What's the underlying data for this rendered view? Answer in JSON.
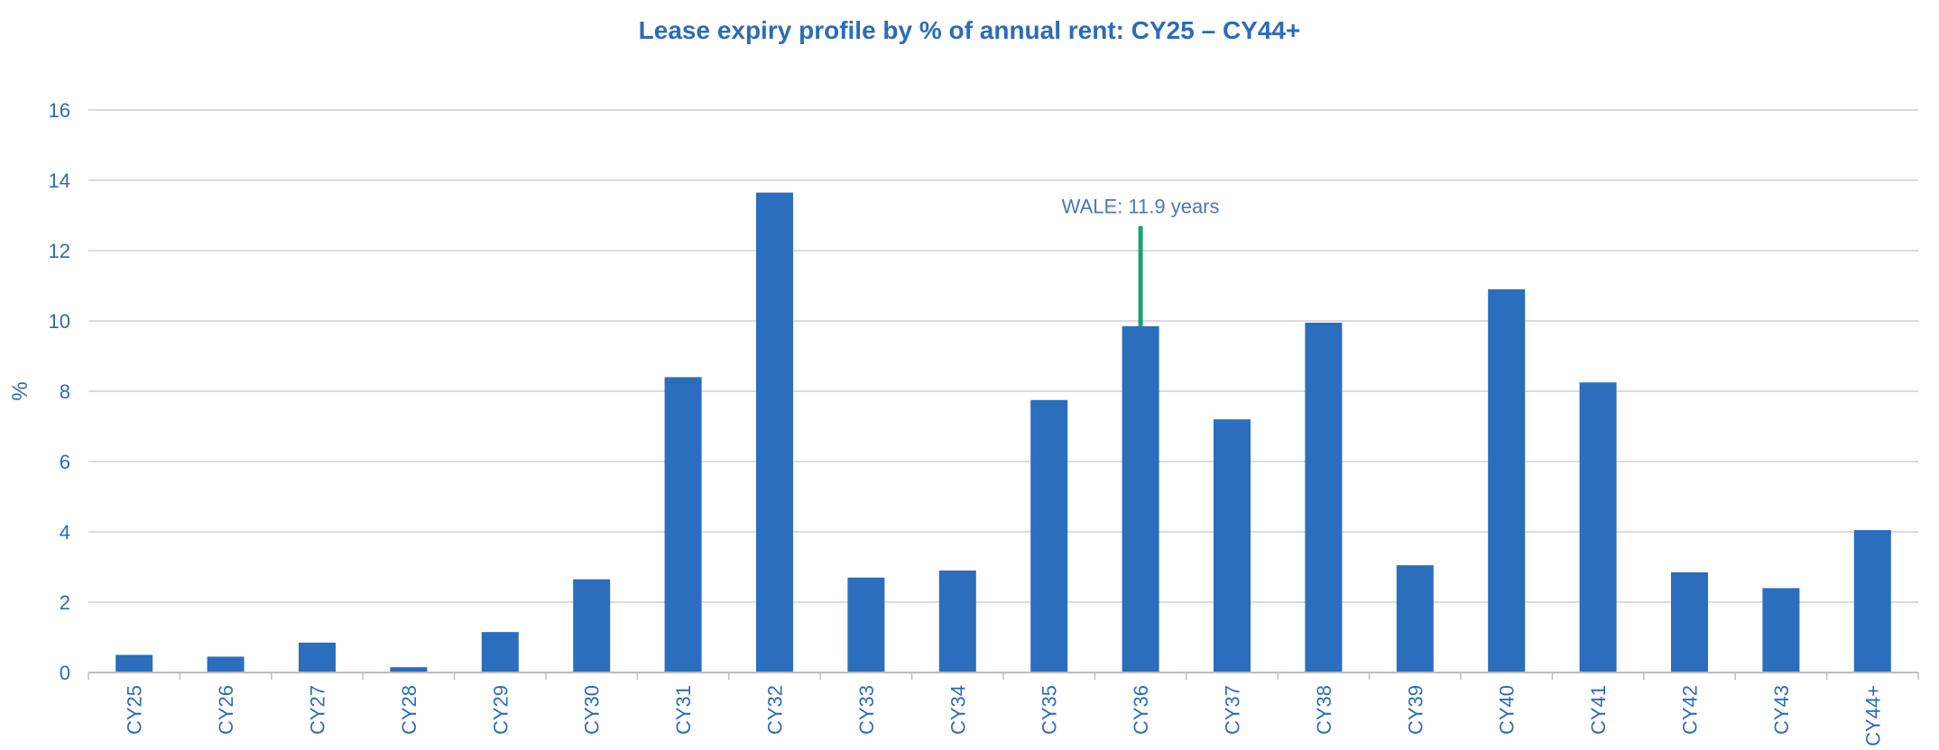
{
  "chart_data": {
    "type": "bar",
    "title": "Lease expiry profile by % of annual rent: CY25 – CY44+",
    "xlabel": "",
    "ylabel": "%",
    "ylim": [
      0,
      16
    ],
    "yticks": [
      0,
      2,
      4,
      6,
      8,
      10,
      12,
      14,
      16
    ],
    "grid": true,
    "legend": "none",
    "categories": [
      "CY25",
      "CY26",
      "CY27",
      "CY28",
      "CY29",
      "CY30",
      "CY31",
      "CY32",
      "CY33",
      "CY34",
      "CY35",
      "CY36",
      "CY37",
      "CY38",
      "CY39",
      "CY40",
      "CY41",
      "CY42",
      "CY43",
      "CY44+"
    ],
    "values": [
      0.5,
      0.45,
      0.85,
      0.15,
      1.15,
      2.65,
      8.4,
      13.65,
      2.7,
      2.9,
      7.75,
      9.85,
      7.2,
      9.95,
      3.05,
      10.9,
      8.25,
      2.85,
      2.4,
      4.05
    ],
    "bar_color": "#2a6ebd",
    "annotation": {
      "label": "WALE: 11.9 years",
      "category": "CY36",
      "y_from": 9.85,
      "y_to": 12.7,
      "color": "#17a272"
    }
  }
}
